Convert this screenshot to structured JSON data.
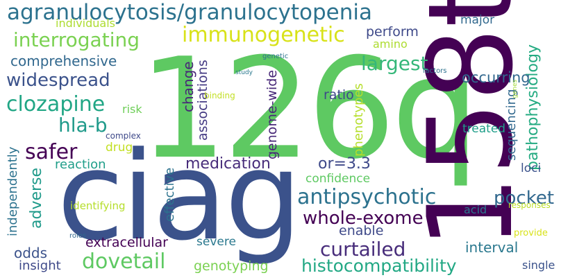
{
  "words": [
    {
      "id": "126q",
      "text": "126q",
      "color": "#5ec962"
    },
    {
      "id": "ciag",
      "text": "ciag",
      "color": "#3b528b"
    },
    {
      "id": "158t",
      "text": "158t",
      "color": "#440154"
    },
    {
      "id": "agranulocytosis-granulocytopenia",
      "text": "agranulocytosis/granulocytopenia",
      "color": "#2c728e"
    },
    {
      "id": "immunogenetic",
      "text": "immunogenetic",
      "color": "#d8e219"
    },
    {
      "id": "interrogating",
      "text": "interrogating",
      "color": "#7ad151"
    },
    {
      "id": "clozapine",
      "text": "clozapine",
      "color": "#21a685"
    },
    {
      "id": "widespread",
      "text": "widespread",
      "color": "#3b528b"
    },
    {
      "id": "comprehensive",
      "text": "comprehensive",
      "color": "#31688e"
    },
    {
      "id": "hla-b",
      "text": "hla-b",
      "color": "#1f9a8a"
    },
    {
      "id": "safer",
      "text": "safer",
      "color": "#440154"
    },
    {
      "id": "medication",
      "text": "medication",
      "color": "#472c7a"
    },
    {
      "id": "antipsychotic",
      "text": "antipsychotic",
      "color": "#2c728e"
    },
    {
      "id": "pocket",
      "text": "pocket",
      "color": "#31688e"
    },
    {
      "id": "whole-exome",
      "text": "whole-exome",
      "color": "#440154"
    },
    {
      "id": "curtailed",
      "text": "curtailed",
      "color": "#472c7a"
    },
    {
      "id": "dovetail",
      "text": "dovetail",
      "color": "#5ec962"
    },
    {
      "id": "histocompatibility",
      "text": "histocompatibility",
      "color": "#22a884"
    },
    {
      "id": "largest",
      "text": "largest",
      "color": "#35b779"
    },
    {
      "id": "or-3-3",
      "text": "or=3.3",
      "color": "#3e4989"
    },
    {
      "id": "pathophysiology",
      "text": "pathophysiology",
      "color": "#25ab82"
    },
    {
      "id": "individuals",
      "text": "individuals",
      "color": "#addc30"
    },
    {
      "id": "perform",
      "text": "perform",
      "color": "#3e4989"
    },
    {
      "id": "amino",
      "text": "amino",
      "color": "#addc30"
    },
    {
      "id": "major",
      "text": "major",
      "color": "#31688e"
    },
    {
      "id": "occurring",
      "text": "occurring",
      "color": "#31688e"
    },
    {
      "id": "ratio",
      "text": "ratio",
      "color": "#3e4989"
    },
    {
      "id": "change",
      "text": "change",
      "color": "#482878"
    },
    {
      "id": "associations",
      "text": "associations",
      "color": "#443a83"
    },
    {
      "id": "genome-wide",
      "text": "genome-wide",
      "color": "#482878"
    },
    {
      "id": "phenotypes",
      "text": "phenotypes",
      "color": "#b5de2b"
    },
    {
      "id": "sequencing",
      "text": "sequencing",
      "color": "#31688e"
    },
    {
      "id": "treated",
      "text": "treated",
      "color": "#1f9e89"
    },
    {
      "id": "loci",
      "text": "loci",
      "color": "#3b528b"
    },
    {
      "id": "confidence",
      "text": "confidence",
      "color": "#5ec962"
    },
    {
      "id": "risk",
      "text": "risk",
      "color": "#6ece58"
    },
    {
      "id": "drug",
      "text": "drug",
      "color": "#c2df23"
    },
    {
      "id": "complex",
      "text": "complex",
      "color": "#3e4989"
    },
    {
      "id": "reaction",
      "text": "reaction",
      "color": "#1f9e89"
    },
    {
      "id": "independently",
      "text": "independently",
      "color": "#2c728e"
    },
    {
      "id": "adverse",
      "text": "adverse",
      "color": "#1f9a8a"
    },
    {
      "id": "effective",
      "text": "effective",
      "color": "#2c728e"
    },
    {
      "id": "identifying",
      "text": "identifying",
      "color": "#b5de2b"
    },
    {
      "id": "enable",
      "text": "enable",
      "color": "#3e4989"
    },
    {
      "id": "extracellular",
      "text": "extracellular",
      "color": "#440154"
    },
    {
      "id": "severe",
      "text": "severe",
      "color": "#2a788e"
    },
    {
      "id": "interval",
      "text": "interval",
      "color": "#2a788e"
    },
    {
      "id": "acid",
      "text": "acid",
      "color": "#2a788e"
    },
    {
      "id": "provide",
      "text": "provide",
      "color": "#d8e219"
    },
    {
      "id": "responses",
      "text": "responses",
      "color": "#bddf26"
    },
    {
      "id": "odds",
      "text": "odds",
      "color": "#3b528b"
    },
    {
      "id": "insight",
      "text": "insight",
      "color": "#3e4989"
    },
    {
      "id": "genotyping",
      "text": "genotyping",
      "color": "#7ad151"
    },
    {
      "id": "single",
      "text": "single",
      "color": "#3b528b"
    },
    {
      "id": "roles",
      "text": "roles",
      "color": "#31688e"
    },
    {
      "id": "study",
      "text": "study",
      "color": "#2a788e"
    },
    {
      "id": "genetic",
      "text": "genetic",
      "color": "#2c728e"
    },
    {
      "id": "factors",
      "text": "factors",
      "color": "#2c728e"
    },
    {
      "id": "binding",
      "text": "binding",
      "color": "#c2df23"
    },
    {
      "id": "genes",
      "text": "genes",
      "color": "#a2da37"
    }
  ]
}
